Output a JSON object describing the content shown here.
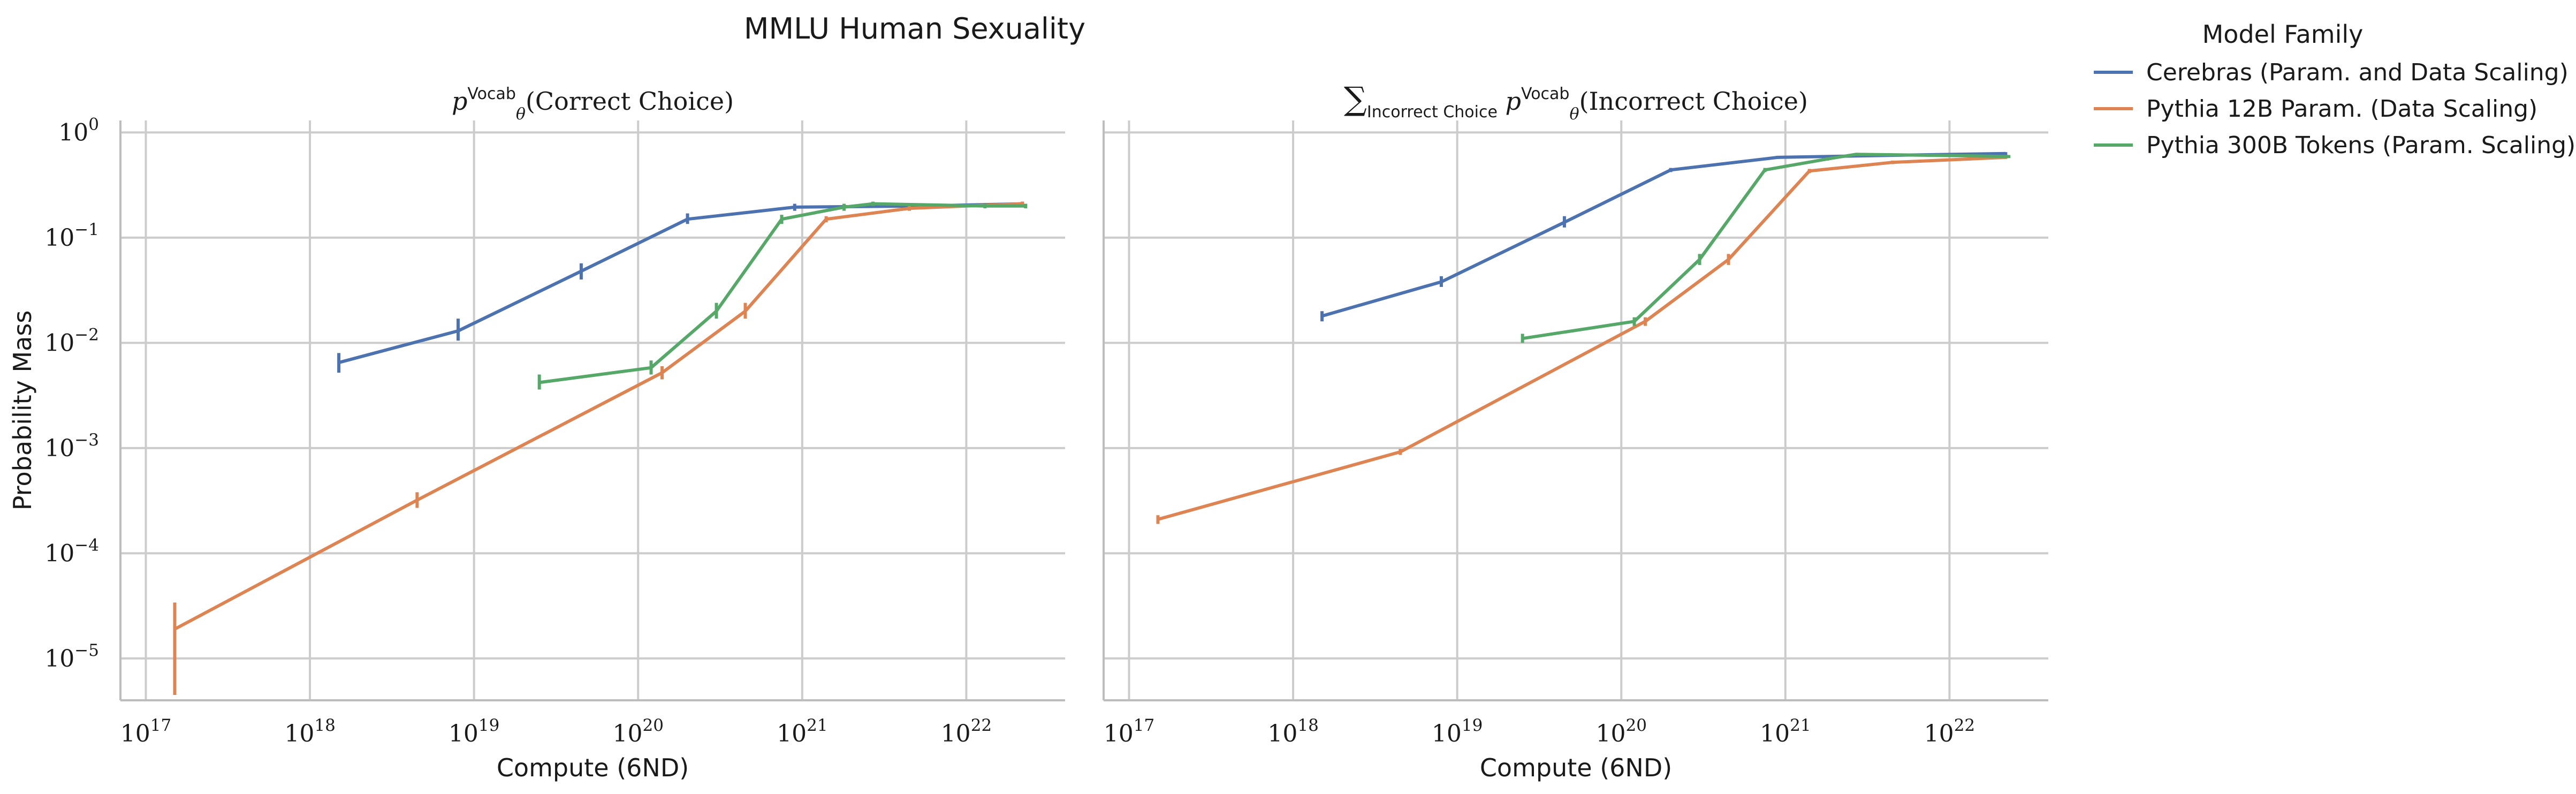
{
  "figure_title": "MMLU Human Sexuality",
  "legend": {
    "title": "Model Family",
    "entries": [
      {
        "label": "Cerebras (Param. and Data Scaling)",
        "color": "#4c72b0"
      },
      {
        "label": "Pythia 12B Param. (Data Scaling)",
        "color": "#dd8452"
      },
      {
        "label": "Pythia 300B Tokens (Param. Scaling)",
        "color": "#55a868"
      }
    ]
  },
  "chart_data": [
    {
      "type": "line",
      "title_parts": {
        "base": "p",
        "sub": "θ",
        "sup": "Vocab",
        "suffix": "(Correct Choice)"
      },
      "xlabel": "Compute (6ND)",
      "ylabel": "Probability Mass",
      "xscale": "log",
      "yscale": "log",
      "xlim": [
        7e+16,
        4e+22
      ],
      "ylim": [
        4e-06,
        1.3
      ],
      "x_ticks": [
        {
          "base": "10",
          "exp": "17"
        },
        {
          "base": "10",
          "exp": "18"
        },
        {
          "base": "10",
          "exp": "19"
        },
        {
          "base": "10",
          "exp": "20"
        },
        {
          "base": "10",
          "exp": "21"
        },
        {
          "base": "10",
          "exp": "22"
        }
      ],
      "y_ticks": [
        {
          "base": "10",
          "exp": "−5"
        },
        {
          "base": "10",
          "exp": "−4"
        },
        {
          "base": "10",
          "exp": "−3"
        },
        {
          "base": "10",
          "exp": "−2"
        },
        {
          "base": "10",
          "exp": "−1"
        },
        {
          "base": "10",
          "exp": "0"
        }
      ],
      "grid": true,
      "series": [
        {
          "name": "Cerebras (Param. and Data Scaling)",
          "color": "#4c72b0",
          "points": [
            {
              "x": 1.5e+18,
              "y": 0.0065,
              "lo": 0.0052,
              "hi": 0.008
            },
            {
              "x": 8e+18,
              "y": 0.013,
              "lo": 0.0105,
              "hi": 0.017
            },
            {
              "x": 4.5e+19,
              "y": 0.048,
              "lo": 0.04,
              "hi": 0.057
            },
            {
              "x": 2e+20,
              "y": 0.15,
              "lo": 0.135,
              "hi": 0.17
            },
            {
              "x": 9e+20,
              "y": 0.195,
              "lo": 0.18,
              "hi": 0.21
            },
            {
              "x": 5.5e+21,
              "y": 0.2,
              "lo": 0.19,
              "hi": 0.21
            },
            {
              "x": 2.2e+22,
              "y": 0.21,
              "lo": 0.2,
              "hi": 0.22
            }
          ]
        },
        {
          "name": "Pythia 12B Param. (Data Scaling)",
          "color": "#dd8452",
          "points": [
            {
              "x": 1.5e+17,
              "y": 1.9e-05,
              "lo": 4.5e-06,
              "hi": 3.4e-05
            },
            {
              "x": 4.5e+18,
              "y": 0.00032,
              "lo": 0.00027,
              "hi": 0.00038
            },
            {
              "x": 1.4e+20,
              "y": 0.0052,
              "lo": 0.0045,
              "hi": 0.006
            },
            {
              "x": 4.5e+20,
              "y": 0.02,
              "lo": 0.017,
              "hi": 0.024
            },
            {
              "x": 1.4e+21,
              "y": 0.15,
              "lo": 0.14,
              "hi": 0.16
            },
            {
              "x": 4.5e+21,
              "y": 0.19,
              "lo": 0.18,
              "hi": 0.2
            },
            {
              "x": 2.2e+22,
              "y": 0.21,
              "lo": 0.2,
              "hi": 0.22
            }
          ]
        },
        {
          "name": "Pythia 300B Tokens (Param. Scaling)",
          "color": "#55a868",
          "points": [
            {
              "x": 2.5e+19,
              "y": 0.0042,
              "lo": 0.0036,
              "hi": 0.005
            },
            {
              "x": 1.2e+20,
              "y": 0.0058,
              "lo": 0.005,
              "hi": 0.0068
            },
            {
              "x": 3e+20,
              "y": 0.02,
              "lo": 0.017,
              "hi": 0.024
            },
            {
              "x": 7.5e+20,
              "y": 0.15,
              "lo": 0.135,
              "hi": 0.165
            },
            {
              "x": 1.8e+21,
              "y": 0.195,
              "lo": 0.18,
              "hi": 0.21
            },
            {
              "x": 2.7e+21,
              "y": 0.21,
              "lo": 0.2,
              "hi": 0.22
            },
            {
              "x": 1.3e+22,
              "y": 0.2,
              "lo": 0.19,
              "hi": 0.21
            },
            {
              "x": 2.3e+22,
              "y": 0.2,
              "lo": 0.19,
              "hi": 0.21
            }
          ]
        }
      ]
    },
    {
      "type": "line",
      "title_parts": {
        "prefix": "∑",
        "prefix_sub": "Incorrect Choice",
        "base": "p",
        "sub": "θ",
        "sup": "Vocab",
        "suffix": "(Incorrect Choice)"
      },
      "xlabel": "Compute (6ND)",
      "ylabel": "",
      "xscale": "log",
      "yscale": "log",
      "xlim": [
        7e+16,
        4e+22
      ],
      "ylim": [
        4e-06,
        1.3
      ],
      "x_ticks": [
        {
          "base": "10",
          "exp": "17"
        },
        {
          "base": "10",
          "exp": "18"
        },
        {
          "base": "10",
          "exp": "19"
        },
        {
          "base": "10",
          "exp": "20"
        },
        {
          "base": "10",
          "exp": "21"
        },
        {
          "base": "10",
          "exp": "22"
        }
      ],
      "y_ticks": [],
      "grid": true,
      "series": [
        {
          "name": "Cerebras (Param. and Data Scaling)",
          "color": "#4c72b0",
          "points": [
            {
              "x": 1.5e+18,
              "y": 0.018,
              "lo": 0.016,
              "hi": 0.02
            },
            {
              "x": 8e+18,
              "y": 0.038,
              "lo": 0.034,
              "hi": 0.043
            },
            {
              "x": 4.5e+19,
              "y": 0.14,
              "lo": 0.125,
              "hi": 0.16
            },
            {
              "x": 2e+20,
              "y": 0.44,
              "lo": 0.42,
              "hi": 0.46
            },
            {
              "x": 9e+20,
              "y": 0.58,
              "lo": 0.56,
              "hi": 0.6
            },
            {
              "x": 5.5e+21,
              "y": 0.61,
              "lo": 0.59,
              "hi": 0.63
            },
            {
              "x": 2.2e+22,
              "y": 0.63,
              "lo": 0.61,
              "hi": 0.65
            }
          ]
        },
        {
          "name": "Pythia 12B Param. (Data Scaling)",
          "color": "#dd8452",
          "points": [
            {
              "x": 1.5e+17,
              "y": 0.00021,
              "lo": 0.00019,
              "hi": 0.00023
            },
            {
              "x": 4.5e+18,
              "y": 0.00092,
              "lo": 0.00086,
              "hi": 0.00098
            },
            {
              "x": 1.4e+20,
              "y": 0.016,
              "lo": 0.0145,
              "hi": 0.0175
            },
            {
              "x": 4.5e+20,
              "y": 0.062,
              "lo": 0.055,
              "hi": 0.07
            },
            {
              "x": 1.4e+21,
              "y": 0.43,
              "lo": 0.41,
              "hi": 0.45
            },
            {
              "x": 4.5e+21,
              "y": 0.52,
              "lo": 0.5,
              "hi": 0.54
            },
            {
              "x": 2.2e+22,
              "y": 0.58,
              "lo": 0.56,
              "hi": 0.6
            }
          ]
        },
        {
          "name": "Pythia 300B Tokens (Param. Scaling)",
          "color": "#55a868",
          "points": [
            {
              "x": 2.5e+19,
              "y": 0.011,
              "lo": 0.01,
              "hi": 0.0122
            },
            {
              "x": 1.2e+20,
              "y": 0.016,
              "lo": 0.0145,
              "hi": 0.0175
            },
            {
              "x": 3e+20,
              "y": 0.062,
              "lo": 0.055,
              "hi": 0.07
            },
            {
              "x": 7.5e+20,
              "y": 0.44,
              "lo": 0.42,
              "hi": 0.46
            },
            {
              "x": 1.8e+21,
              "y": 0.56,
              "lo": 0.54,
              "hi": 0.58
            },
            {
              "x": 2.7e+21,
              "y": 0.62,
              "lo": 0.6,
              "hi": 0.64
            },
            {
              "x": 1.3e+22,
              "y": 0.6,
              "lo": 0.58,
              "hi": 0.62
            },
            {
              "x": 2.3e+22,
              "y": 0.59,
              "lo": 0.57,
              "hi": 0.61
            }
          ]
        }
      ]
    }
  ]
}
